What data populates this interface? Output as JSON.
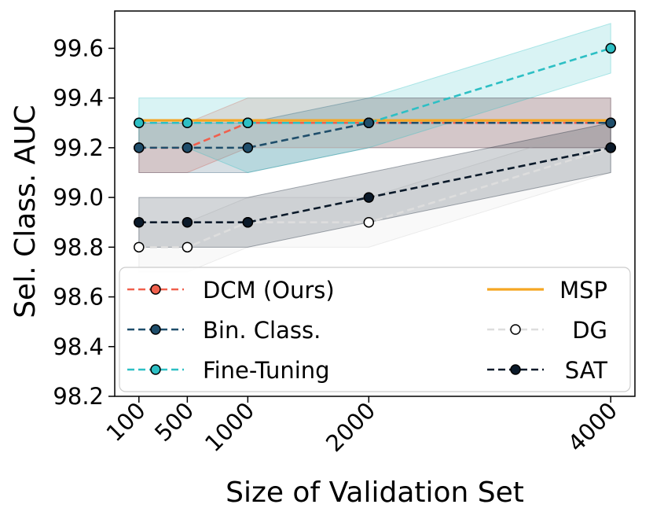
{
  "chart_data": {
    "type": "line",
    "xlabel": "Size of Validation Set",
    "ylabel": "Sel. Class. AUC",
    "categories": [
      "100",
      "500",
      "1000",
      "2000",
      "4000"
    ],
    "x": [
      100,
      500,
      1000,
      2000,
      4000
    ],
    "xlim": [
      -100,
      4200
    ],
    "ylim": [
      98.2,
      99.75
    ],
    "yticks": [
      98.2,
      98.4,
      98.6,
      98.8,
      99.0,
      99.2,
      99.4,
      99.6
    ],
    "ytick_labels": [
      "98.2",
      "98.4",
      "98.6",
      "98.8",
      "99.0",
      "99.2",
      "99.4",
      "99.6"
    ],
    "grid": false,
    "legend_position": "bottom",
    "series": [
      {
        "name": "DCM (Ours)",
        "values": [
          99.2,
          99.2,
          99.3,
          99.3,
          99.3
        ],
        "lower": [
          99.1,
          99.1,
          99.2,
          99.2,
          99.2
        ],
        "upper": [
          99.3,
          99.3,
          99.4,
          99.4,
          99.4
        ],
        "color": "#f0604d",
        "style": "dashed",
        "marker": "filled"
      },
      {
        "name": "Bin. Class.",
        "values": [
          99.2,
          99.2,
          99.2,
          99.3,
          99.3
        ],
        "lower": [
          99.1,
          99.1,
          99.1,
          99.2,
          99.2
        ],
        "upper": [
          99.3,
          99.3,
          99.3,
          99.4,
          99.4
        ],
        "color": "#1f4e6b",
        "style": "dashed",
        "marker": "filled"
      },
      {
        "name": "Fine-Tuning",
        "values": [
          99.3,
          99.3,
          99.3,
          99.3,
          99.6
        ],
        "lower": [
          99.2,
          99.2,
          99.1,
          99.2,
          99.5
        ],
        "upper": [
          99.4,
          99.4,
          99.4,
          99.4,
          99.7
        ],
        "color": "#2dbfc4",
        "style": "dashed",
        "marker": "filled"
      },
      {
        "name": "MSP",
        "values": [
          99.31,
          99.31,
          99.31,
          99.31,
          99.31
        ],
        "color": "#f5a623",
        "style": "solid",
        "marker": "none"
      },
      {
        "name": "DG",
        "values": [
          98.8,
          98.8,
          98.9,
          98.9,
          99.2
        ],
        "lower": [
          98.7,
          98.7,
          98.8,
          98.8,
          99.1
        ],
        "upper": [
          98.9,
          98.9,
          99.0,
          99.0,
          99.3
        ],
        "color": "#dddddd",
        "style": "dashed",
        "marker": "open"
      },
      {
        "name": "SAT",
        "values": [
          98.9,
          98.9,
          98.9,
          99.0,
          99.2
        ],
        "lower": [
          98.8,
          98.8,
          98.8,
          98.9,
          99.1
        ],
        "upper": [
          99.0,
          99.0,
          99.0,
          99.1,
          99.3
        ],
        "color": "#0b1a2a",
        "style": "dashed",
        "marker": "filled"
      }
    ]
  }
}
